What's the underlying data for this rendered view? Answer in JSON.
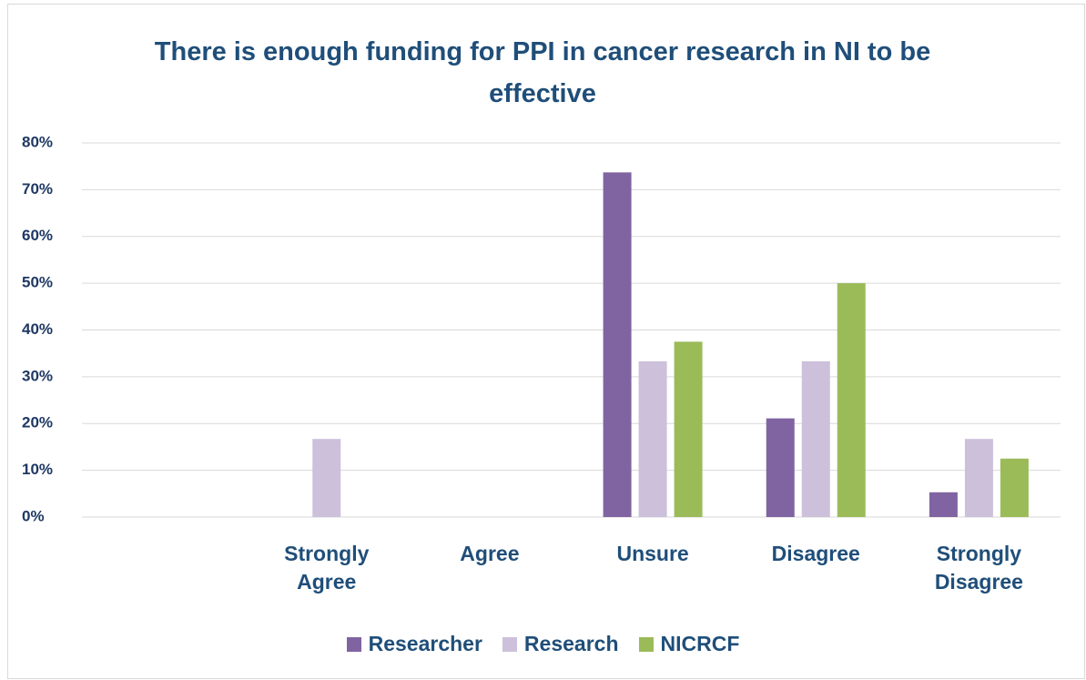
{
  "chart_data": {
    "type": "bar",
    "title": "There is enough funding for PPI in cancer research in NI to be effective",
    "categories": [
      null,
      "Strongly Agree",
      "Agree",
      "Unsure",
      "Disagree",
      "Strongly Disagree"
    ],
    "series": [
      {
        "name": "Researcher",
        "color": "#8064a2",
        "values": [
          null,
          0,
          0,
          73.7,
          21.1,
          5.3
        ]
      },
      {
        "name": "Research",
        "color": "#ccc0da",
        "values": [
          null,
          16.7,
          0,
          33.3,
          33.3,
          16.7
        ]
      },
      {
        "name": "NICRCF",
        "color": "#9bbb59",
        "values": [
          null,
          0,
          0,
          37.5,
          50,
          12.5
        ]
      }
    ],
    "ylim": [
      0,
      80
    ],
    "yticks": [
      {
        "value": 0,
        "label": "0%"
      },
      {
        "value": 10,
        "label": "10%"
      },
      {
        "value": 20,
        "label": "20%"
      },
      {
        "value": 30,
        "label": "30%"
      },
      {
        "value": 40,
        "label": "40%"
      },
      {
        "value": 50,
        "label": "50%"
      },
      {
        "value": 60,
        "label": "60%"
      },
      {
        "value": 70,
        "label": "70%"
      },
      {
        "value": 80,
        "label": "80%"
      }
    ],
    "grid": true,
    "legend": "bottom"
  }
}
